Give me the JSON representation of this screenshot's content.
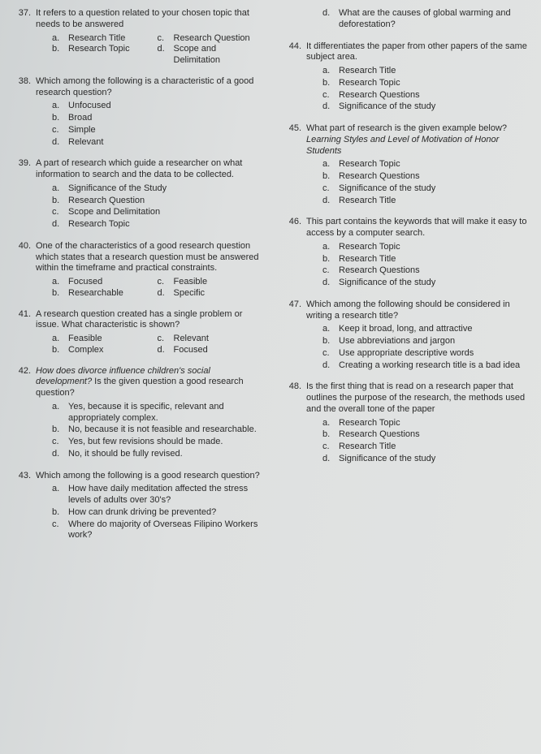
{
  "left": [
    {
      "num": "37.",
      "text": "It refers to a question related to your chosen topic that needs to be answered",
      "opts_layout": "inline2",
      "opts": [
        {
          "l": "a.",
          "t": "Research Title"
        },
        {
          "l": "c.",
          "t": "Research Question"
        },
        {
          "l": "b.",
          "t": "Research Topic"
        },
        {
          "l": "d.",
          "t": "Scope and Delimitation"
        }
      ]
    },
    {
      "num": "38.",
      "text": "Which among the following is a characteristic of a good research question?",
      "opts_layout": "list",
      "opts": [
        {
          "l": "a.",
          "t": "Unfocused"
        },
        {
          "l": "b.",
          "t": "Broad"
        },
        {
          "l": "c.",
          "t": "Simple"
        },
        {
          "l": "d.",
          "t": "Relevant"
        }
      ]
    },
    {
      "num": "39.",
      "text": "A part of research which guide a researcher on what information to search and the data to be collected.",
      "opts_layout": "list",
      "opts": [
        {
          "l": "a.",
          "t": "Significance of the Study"
        },
        {
          "l": "b.",
          "t": "Research Question"
        },
        {
          "l": "c.",
          "t": "Scope and Delimitation"
        },
        {
          "l": "d.",
          "t": "Research Topic"
        }
      ]
    },
    {
      "num": "40.",
      "text": "One of the characteristics of a good research question which states that a research question must be answered within the timeframe and practical constraints.",
      "opts_layout": "inline2",
      "opts": [
        {
          "l": "a.",
          "t": "Focused"
        },
        {
          "l": "c.",
          "t": "Feasible"
        },
        {
          "l": "b.",
          "t": "Researchable"
        },
        {
          "l": "d.",
          "t": "Specific"
        }
      ]
    },
    {
      "num": "41.",
      "text": "A research question created has a single problem or issue. What characteristic is shown?",
      "opts_layout": "inline2",
      "opts": [
        {
          "l": "a.",
          "t": "Feasible"
        },
        {
          "l": "c.",
          "t": "Relevant"
        },
        {
          "l": "b.",
          "t": "Complex"
        },
        {
          "l": "d.",
          "t": "Focused"
        }
      ]
    },
    {
      "num": "42.",
      "text_html": "q42",
      "opts_layout": "list",
      "opts": [
        {
          "l": "a.",
          "t": "Yes, because it is specific, relevant and appropriately complex."
        },
        {
          "l": "b.",
          "t": "No, because it is not feasible and researchable."
        },
        {
          "l": "c.",
          "t": "Yes, but few revisions should be made."
        },
        {
          "l": "d.",
          "t": "No, it should be fully revised."
        }
      ]
    },
    {
      "num": "43.",
      "text": "Which among the following is a good research question?",
      "opts_layout": "list",
      "opts": [
        {
          "l": "a.",
          "t": "How have daily meditation affected the stress levels of adults over 30's?"
        },
        {
          "l": "b.",
          "t": "How can drunk driving be prevented?"
        },
        {
          "l": "c.",
          "t": "Where do majority of Overseas Filipino Workers work?"
        }
      ]
    }
  ],
  "right": [
    {
      "num": "",
      "lead": "d.",
      "text": "What are the causes of global warming and deforestation?",
      "opts_layout": "lead"
    },
    {
      "num": "44.",
      "text": "It differentiates the paper from other papers of the same subject area.",
      "opts_layout": "list",
      "opts": [
        {
          "l": "a.",
          "t": "Research Title"
        },
        {
          "l": "b.",
          "t": "Research Topic"
        },
        {
          "l": "c.",
          "t": "Research Questions"
        },
        {
          "l": "d.",
          "t": "Significance of the study"
        }
      ]
    },
    {
      "num": "45.",
      "text_html": "q45",
      "opts_layout": "list",
      "opts": [
        {
          "l": "a.",
          "t": "Research Topic"
        },
        {
          "l": "b.",
          "t": "Research Questions"
        },
        {
          "l": "c.",
          "t": "Significance of the study"
        },
        {
          "l": "d.",
          "t": "Research Title"
        }
      ]
    },
    {
      "num": "46.",
      "text": "This part contains the keywords that will make it easy to access by a computer search.",
      "opts_layout": "list",
      "opts": [
        {
          "l": "a.",
          "t": "Research Topic"
        },
        {
          "l": "b.",
          "t": "Research Title"
        },
        {
          "l": "c.",
          "t": "Research Questions"
        },
        {
          "l": "d.",
          "t": "Significance of the study"
        }
      ]
    },
    {
      "num": "47.",
      "text": "Which among the following should be considered in writing a research title?",
      "opts_layout": "list",
      "opts": [
        {
          "l": "a.",
          "t": "Keep it broad, long, and attractive"
        },
        {
          "l": "b.",
          "t": "Use abbreviations and jargon"
        },
        {
          "l": "c.",
          "t": "Use appropriate descriptive words"
        },
        {
          "l": "d.",
          "t": "Creating a working research title is a bad idea"
        }
      ]
    },
    {
      "num": "48.",
      "text": "Is the first thing that is read on a research paper that outlines the purpose of the research, the methods used and the overall tone of the paper",
      "opts_layout": "list",
      "opts": [
        {
          "l": "a.",
          "t": "Research Topic"
        },
        {
          "l": "b.",
          "t": "Research Questions"
        },
        {
          "l": "c.",
          "t": "Research Title"
        },
        {
          "l": "d.",
          "t": "Significance of the study"
        }
      ]
    }
  ],
  "q42_prefix_italic": "How does divorce influence children's social development?",
  "q42_suffix": " Is the given question a good research question?",
  "q45_prefix": "What part of research is the given example below? ",
  "q45_italic": "Learning Styles and Level of Motivation of Honor Students"
}
